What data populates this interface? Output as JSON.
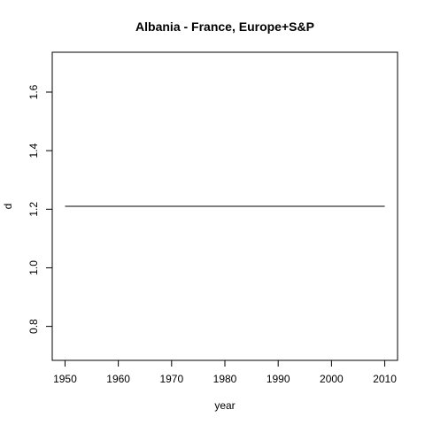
{
  "chart_data": {
    "type": "line",
    "title": "Albania - France, Europe+S&P",
    "xlabel": "year",
    "ylabel": "d",
    "xlim": [
      1947.6,
      2012.4
    ],
    "ylim": [
      0.684,
      1.736
    ],
    "x_ticks": [
      1950,
      1960,
      1970,
      1980,
      1990,
      2000,
      2010
    ],
    "y_ticks": [
      0.8,
      1.0,
      1.2,
      1.4,
      1.6
    ],
    "y_tick_labels": [
      "0.8",
      "1.0",
      "1.2",
      "1.4",
      "1.6"
    ],
    "grid": false,
    "legend": "none",
    "series": [
      {
        "color": "#000000",
        "x": [
          1950,
          2010
        ],
        "y": [
          1.21,
          1.21
        ]
      }
    ]
  }
}
